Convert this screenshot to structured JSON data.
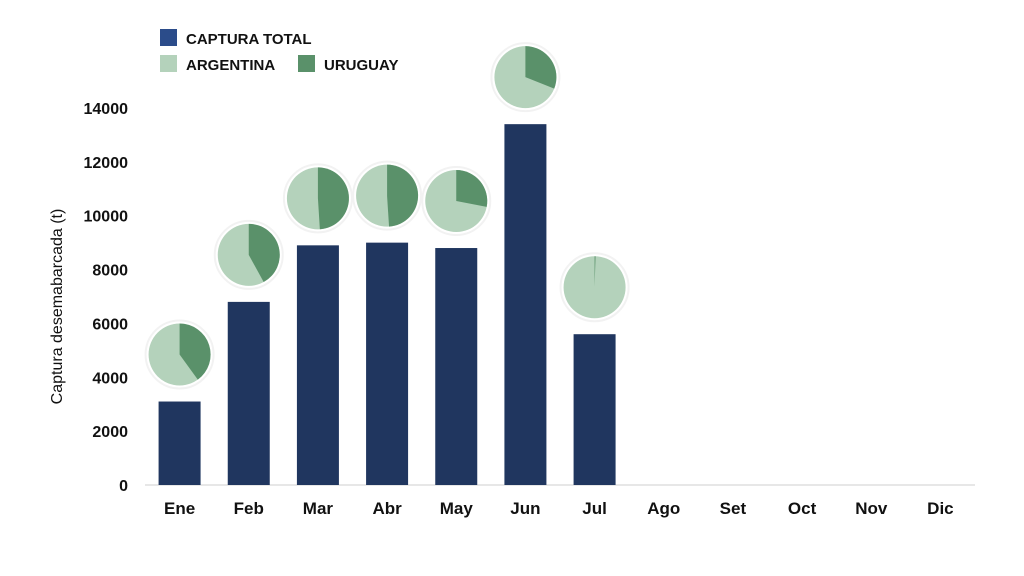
{
  "chart_data": {
    "type": "bar",
    "title": "",
    "xlabel": "",
    "ylabel": "Captura desemabarcada (t)",
    "ylim": [
      0,
      14000
    ],
    "yticks": [
      0,
      2000,
      4000,
      6000,
      8000,
      10000,
      12000,
      14000
    ],
    "categories": [
      "Ene",
      "Feb",
      "Mar",
      "Abr",
      "May",
      "Jun",
      "Jul",
      "Ago",
      "Set",
      "Oct",
      "Nov",
      "Dic"
    ],
    "series": [
      {
        "name": "CAPTURA TOTAL",
        "values": [
          3100,
          6800,
          8900,
          9000,
          8800,
          13400,
          5600,
          null,
          null,
          null,
          null,
          null
        ]
      }
    ],
    "pie_overlays": {
      "labels": [
        "ARGENTINA",
        "URUGUAY"
      ],
      "shares": [
        {
          "month": "Ene",
          "ARGENTINA": 0.6,
          "URUGUAY": 0.4
        },
        {
          "month": "Feb",
          "ARGENTINA": 0.58,
          "URUGUAY": 0.42
        },
        {
          "month": "Mar",
          "ARGENTINA": 0.51,
          "URUGUAY": 0.49
        },
        {
          "month": "Abr",
          "ARGENTINA": 0.51,
          "URUGUAY": 0.49
        },
        {
          "month": "May",
          "ARGENTINA": 0.72,
          "URUGUAY": 0.28
        },
        {
          "month": "Jun",
          "ARGENTINA": 0.69,
          "URUGUAY": 0.31
        },
        {
          "month": "Jul",
          "ARGENTINA": 0.995,
          "URUGUAY": 0.005
        }
      ]
    },
    "legend": {
      "placement": "top-left",
      "items": [
        {
          "label": "CAPTURA TOTAL",
          "color": "#2b4c8a"
        },
        {
          "label": "ARGENTINA",
          "color": "#b4d2bb"
        },
        {
          "label": "URUGUAY",
          "color": "#5a916a"
        }
      ]
    },
    "colors": {
      "bar": "#20365f",
      "legend_total": "#2b4c8a",
      "argentina": "#b4d2bb",
      "uruguay": "#5a916a",
      "axis": "#cfcfcf",
      "pie_stroke": "#f2f2f2"
    },
    "grid": false
  }
}
